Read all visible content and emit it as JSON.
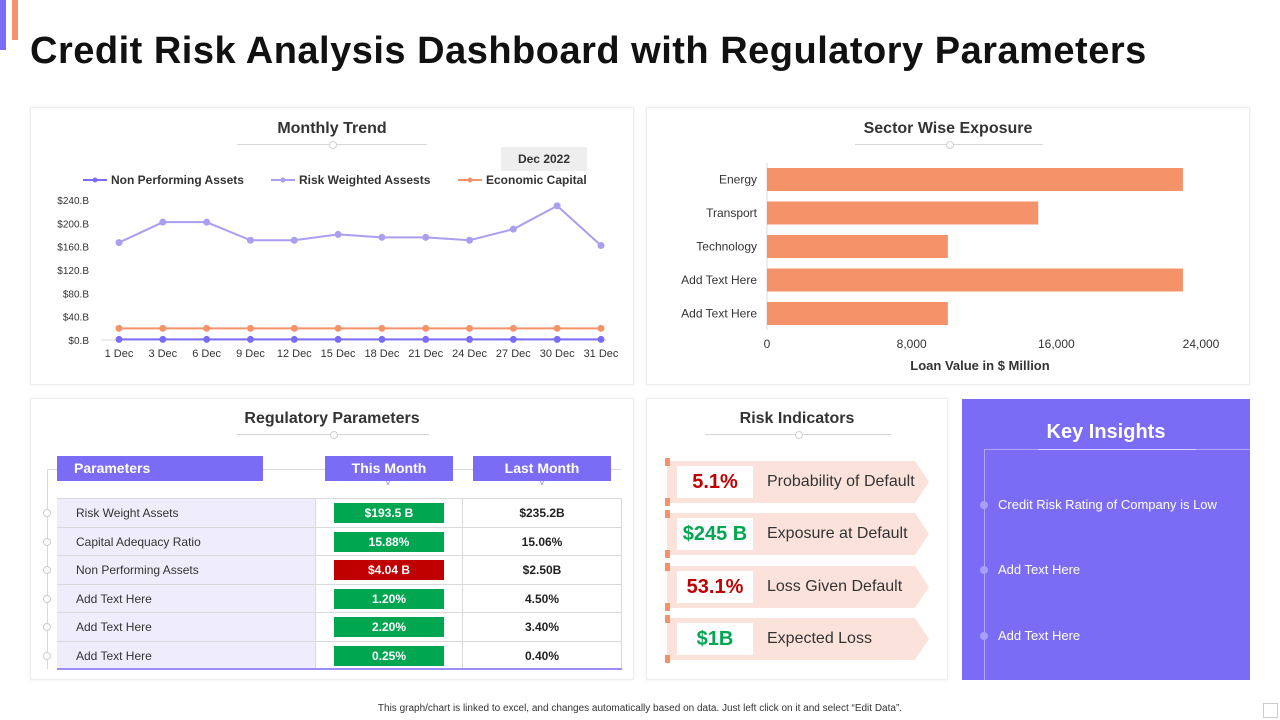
{
  "page_title": "Credit Risk Analysis Dashboard with Regulatory Parameters",
  "colors": {
    "accent_purple": "#7b6cf6",
    "accent_orange": "#f4936a",
    "good_green": "#00a650",
    "bad_red": "#c00000",
    "risk_bg": "#fbe3dc"
  },
  "monthly_trend": {
    "title": "Monthly Trend",
    "date_tag": "Dec 2022"
  },
  "sector_exposure": {
    "title": "Sector Wise Exposure"
  },
  "chart_data": [
    {
      "type": "line",
      "title": "Monthly Trend",
      "x": [
        "1 Dec",
        "3 Dec",
        "6 Dec",
        "9 Dec",
        "12 Dec",
        "15 Dec",
        "18 Dec",
        "21 Dec",
        "24 Dec",
        "27 Dec",
        "30 Dec",
        "31 Dec"
      ],
      "ylim": [
        0,
        240
      ],
      "y_ticks": [
        "$0.B",
        "$40.B",
        "$80.B",
        "$120.B",
        "$160.B",
        "$200.B",
        "$240.B"
      ],
      "legend_position": "top",
      "series": [
        {
          "name": "Non Performing Assets",
          "color": "#7b6cf6",
          "values": [
            1,
            1,
            1,
            1,
            1,
            1,
            1,
            1,
            1,
            1,
            1,
            1
          ]
        },
        {
          "name": "Risk Weighted Assests",
          "color": "#a99ff0",
          "values": [
            167,
            202,
            202,
            171,
            171,
            181,
            176,
            176,
            171,
            190,
            230,
            162
          ]
        },
        {
          "name": "Economic Capital",
          "color": "#f4936a",
          "values": [
            20,
            20,
            20,
            20,
            20,
            20,
            20,
            20,
            20,
            20,
            20,
            20
          ]
        }
      ]
    },
    {
      "type": "bar",
      "orientation": "horizontal",
      "title": "Sector Wise Exposure",
      "categories": [
        "Energy",
        "Transport",
        "Technology",
        "Add Text Here",
        "Add Text Here"
      ],
      "values": [
        23000,
        15000,
        10000,
        23000,
        10000
      ],
      "xlabel": "Loan Value in $ Million",
      "xlim": [
        0,
        24000
      ],
      "x_ticks": [
        "0",
        "8,000",
        "16,000",
        "24,000"
      ],
      "color": "#f4936a",
      "grid": false
    }
  ],
  "regulatory": {
    "title": "Regulatory Parameters",
    "headers": {
      "parameters": "Parameters",
      "this_month": "This Month",
      "last_month": "Last Month"
    },
    "rows": [
      {
        "name": "Risk Weight Assets",
        "this_month": "$193.5 B",
        "last_month": "$235.2B",
        "status": "good"
      },
      {
        "name": "Capital Adequacy Ratio",
        "this_month": "15.88%",
        "last_month": "15.06%",
        "status": "good"
      },
      {
        "name": "Non Performing Assets",
        "this_month": "$4.04 B",
        "last_month": "$2.50B",
        "status": "bad"
      },
      {
        "name": "Add Text Here",
        "this_month": "1.20%",
        "last_month": "4.50%",
        "status": "good"
      },
      {
        "name": "Add Text Here",
        "this_month": "2.20%",
        "last_month": "3.40%",
        "status": "good"
      },
      {
        "name": "Add Text Here",
        "this_month": "0.25%",
        "last_month": "0.40%",
        "status": "good"
      }
    ]
  },
  "risk_indicators": {
    "title": "Risk Indicators",
    "items": [
      {
        "value": "5.1%",
        "label": "Probability of Default",
        "value_color": "#c00000"
      },
      {
        "value": "$245 B",
        "label": "Exposure at Default",
        "value_color": "#00a650"
      },
      {
        "value": "53.1%",
        "label": "Loss Given Default",
        "value_color": "#c00000"
      },
      {
        "value": "$1B",
        "label": "Expected Loss",
        "value_color": "#00a650"
      }
    ]
  },
  "key_insights": {
    "title": "Key Insights",
    "items": [
      "Credit Risk Rating of Company  is Low",
      "Add Text Here",
      "Add Text Here"
    ]
  },
  "footnote": "This graph/chart is linked to excel, and changes automatically based on data. Just left click on it and select “Edit Data”."
}
